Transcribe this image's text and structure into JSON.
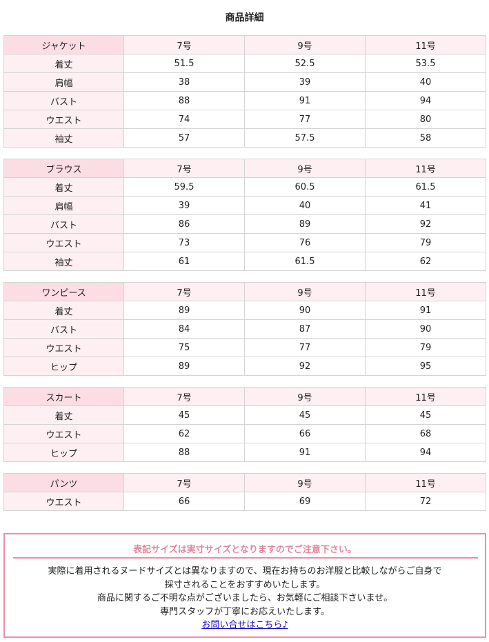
{
  "page_title": "商品詳細",
  "size_tables": [
    {
      "label": "ジャケット",
      "sizes": [
        "7号",
        "9号",
        "11号"
      ],
      "rows": [
        {
          "label": "着丈",
          "values": [
            "51.5",
            "52.5",
            "53.5"
          ]
        },
        {
          "label": "肩幅",
          "values": [
            "38",
            "39",
            "40"
          ]
        },
        {
          "label": "バスト",
          "values": [
            "88",
            "91",
            "94"
          ]
        },
        {
          "label": "ウエスト",
          "values": [
            "74",
            "77",
            "80"
          ]
        },
        {
          "label": "袖丈",
          "values": [
            "57",
            "57.5",
            "58"
          ]
        }
      ]
    },
    {
      "label": "ブラウス",
      "sizes": [
        "7号",
        "9号",
        "11号"
      ],
      "rows": [
        {
          "label": "着丈",
          "values": [
            "59.5",
            "60.5",
            "61.5"
          ]
        },
        {
          "label": "肩幅",
          "values": [
            "39",
            "40",
            "41"
          ]
        },
        {
          "label": "バスト",
          "values": [
            "86",
            "89",
            "92"
          ]
        },
        {
          "label": "ウエスト",
          "values": [
            "73",
            "76",
            "79"
          ]
        },
        {
          "label": "袖丈",
          "values": [
            "61",
            "61.5",
            "62"
          ]
        }
      ]
    },
    {
      "label": "ワンピース",
      "sizes": [
        "7号",
        "9号",
        "11号"
      ],
      "rows": [
        {
          "label": "着丈",
          "values": [
            "89",
            "90",
            "91"
          ]
        },
        {
          "label": "バスト",
          "values": [
            "84",
            "87",
            "90"
          ]
        },
        {
          "label": "ウエスト",
          "values": [
            "75",
            "77",
            "79"
          ]
        },
        {
          "label": "ヒップ",
          "values": [
            "89",
            "92",
            "95"
          ]
        }
      ]
    },
    {
      "label": "スカート",
      "sizes": [
        "7号",
        "9号",
        "11号"
      ],
      "rows": [
        {
          "label": "着丈",
          "values": [
            "45",
            "45",
            "45"
          ]
        },
        {
          "label": "ウエスト",
          "values": [
            "62",
            "66",
            "68"
          ]
        },
        {
          "label": "ヒップ",
          "values": [
            "88",
            "91",
            "94"
          ]
        }
      ]
    },
    {
      "label": "パンツ",
      "sizes": [
        "7号",
        "9号",
        "11号"
      ],
      "rows": [
        {
          "label": "ウエスト",
          "values": [
            "66",
            "69",
            "72"
          ]
        }
      ]
    }
  ],
  "notice": {
    "heading": "表記サイズは実寸サイズとなりますのでご注意下さい。",
    "lines": [
      "実際に着用されるヌードサイズとは異なりますので、現在お持ちのお洋服と比較しながらご自身で",
      "採寸されることをおすすめいたします。",
      "商品に関するご不明な点がございましたら、お気軽にご相談下さいませ。",
      "専門スタッフが丁寧にお応えいたします。"
    ],
    "link_text": "お問い合せはこちら♪"
  },
  "colors": {
    "header_label_bg": "#fcdde3",
    "header_cell_bg": "#fdeff2",
    "row_label_bg": "#fdeff2",
    "notice_border": "#f08ca6",
    "notice_heading": "#e4869a",
    "link": "#1a0dcc"
  }
}
